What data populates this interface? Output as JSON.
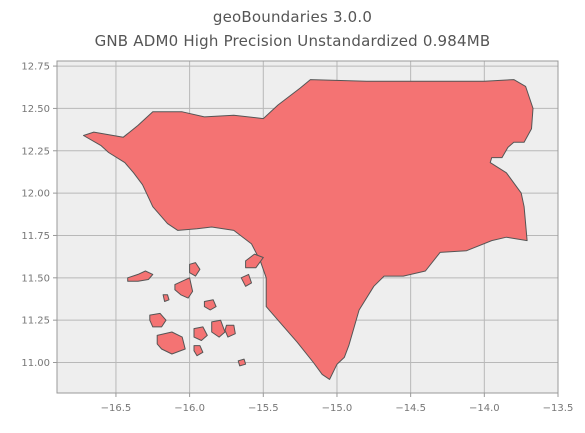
{
  "title": {
    "line1": "geoBoundaries 3.0.0",
    "line2": "GNB ADM0 High Precision Unstandardized 0.984MB"
  },
  "colors": {
    "fill": "#f47373",
    "edge": "#555555",
    "plot_bg": "#eeeeee",
    "grid": "#b8b8b8",
    "frame": "#999999"
  },
  "chart_data": {
    "type": "map",
    "xlim": [
      -16.9,
      -13.5
    ],
    "ylim": [
      10.82,
      12.78
    ],
    "x_ticks": [
      -16.5,
      -16.0,
      -15.5,
      -15.0,
      -14.5,
      -14.0,
      -13.5
    ],
    "x_tick_labels": [
      "−16.5",
      "−16.0",
      "−15.5",
      "−15.0",
      "−14.5",
      "−14.0",
      "−13.5"
    ],
    "y_ticks": [
      11.0,
      11.25,
      11.5,
      11.75,
      12.0,
      12.25,
      12.5,
      12.75
    ],
    "y_tick_labels": [
      "11.00",
      "11.25",
      "11.50",
      "11.75",
      "12.00",
      "12.25",
      "12.50",
      "12.75"
    ],
    "grid": true,
    "mainland": [
      [
        -16.72,
        12.34
      ],
      [
        -16.65,
        12.36
      ],
      [
        -16.45,
        12.33
      ],
      [
        -16.35,
        12.4
      ],
      [
        -16.25,
        12.48
      ],
      [
        -16.05,
        12.48
      ],
      [
        -15.9,
        12.45
      ],
      [
        -15.7,
        12.46
      ],
      [
        -15.5,
        12.44
      ],
      [
        -15.4,
        12.52
      ],
      [
        -15.25,
        12.62
      ],
      [
        -15.18,
        12.67
      ],
      [
        -14.8,
        12.66
      ],
      [
        -14.4,
        12.66
      ],
      [
        -14.0,
        12.66
      ],
      [
        -13.8,
        12.67
      ],
      [
        -13.72,
        12.63
      ],
      [
        -13.67,
        12.5
      ],
      [
        -13.68,
        12.38
      ],
      [
        -13.73,
        12.3
      ],
      [
        -13.8,
        12.3
      ],
      [
        -13.84,
        12.27
      ],
      [
        -13.88,
        12.21
      ],
      [
        -13.95,
        12.21
      ],
      [
        -13.96,
        12.18
      ],
      [
        -13.85,
        12.12
      ],
      [
        -13.75,
        12.0
      ],
      [
        -13.73,
        11.92
      ],
      [
        -13.71,
        11.72
      ],
      [
        -13.85,
        11.74
      ],
      [
        -13.95,
        11.72
      ],
      [
        -14.12,
        11.66
      ],
      [
        -14.3,
        11.65
      ],
      [
        -14.4,
        11.54
      ],
      [
        -14.55,
        11.51
      ],
      [
        -14.68,
        11.51
      ],
      [
        -14.75,
        11.45
      ],
      [
        -14.85,
        11.31
      ],
      [
        -14.92,
        11.1
      ],
      [
        -14.95,
        11.03
      ],
      [
        -15.0,
        10.99
      ],
      [
        -15.05,
        10.9
      ],
      [
        -15.1,
        10.93
      ],
      [
        -15.16,
        11.0
      ],
      [
        -15.27,
        11.12
      ],
      [
        -15.4,
        11.25
      ],
      [
        -15.48,
        11.33
      ],
      [
        -15.48,
        11.5
      ],
      [
        -15.52,
        11.6
      ],
      [
        -15.58,
        11.7
      ],
      [
        -15.7,
        11.78
      ],
      [
        -15.85,
        11.8
      ],
      [
        -15.95,
        11.79
      ],
      [
        -16.08,
        11.78
      ],
      [
        -16.15,
        11.82
      ],
      [
        -16.25,
        11.92
      ],
      [
        -16.32,
        12.05
      ],
      [
        -16.38,
        12.12
      ],
      [
        -16.44,
        12.18
      ],
      [
        -16.55,
        12.24
      ],
      [
        -16.6,
        12.28
      ]
    ],
    "islands": [
      [
        [
          -16.42,
          11.5
        ],
        [
          -16.35,
          11.52
        ],
        [
          -16.3,
          11.54
        ],
        [
          -16.25,
          11.52
        ],
        [
          -16.28,
          11.49
        ],
        [
          -16.35,
          11.48
        ],
        [
          -16.42,
          11.48
        ]
      ],
      [
        [
          -16.1,
          11.46
        ],
        [
          -16.05,
          11.48
        ],
        [
          -16.0,
          11.5
        ],
        [
          -15.98,
          11.42
        ],
        [
          -16.01,
          11.38
        ],
        [
          -16.06,
          11.4
        ],
        [
          -16.1,
          11.43
        ]
      ],
      [
        [
          -16.0,
          11.58
        ],
        [
          -15.96,
          11.59
        ],
        [
          -15.93,
          11.55
        ],
        [
          -15.96,
          11.51
        ],
        [
          -16.0,
          11.53
        ]
      ],
      [
        [
          -15.9,
          11.36
        ],
        [
          -15.84,
          11.37
        ],
        [
          -15.82,
          11.33
        ],
        [
          -15.86,
          11.31
        ],
        [
          -15.9,
          11.33
        ]
      ],
      [
        [
          -16.27,
          11.28
        ],
        [
          -16.2,
          11.29
        ],
        [
          -16.16,
          11.25
        ],
        [
          -16.19,
          11.21
        ],
        [
          -16.25,
          11.21
        ],
        [
          -16.27,
          11.25
        ]
      ],
      [
        [
          -16.22,
          11.16
        ],
        [
          -16.12,
          11.18
        ],
        [
          -16.05,
          11.15
        ],
        [
          -16.03,
          11.08
        ],
        [
          -16.12,
          11.05
        ],
        [
          -16.19,
          11.08
        ],
        [
          -16.22,
          11.11
        ]
      ],
      [
        [
          -15.97,
          11.2
        ],
        [
          -15.91,
          11.21
        ],
        [
          -15.88,
          11.16
        ],
        [
          -15.92,
          11.13
        ],
        [
          -15.97,
          11.15
        ]
      ],
      [
        [
          -15.97,
          11.1
        ],
        [
          -15.93,
          11.1
        ],
        [
          -15.91,
          11.06
        ],
        [
          -15.95,
          11.04
        ],
        [
          -15.97,
          11.07
        ]
      ],
      [
        [
          -15.85,
          11.24
        ],
        [
          -15.79,
          11.25
        ],
        [
          -15.76,
          11.18
        ],
        [
          -15.8,
          11.15
        ],
        [
          -15.85,
          11.18
        ]
      ],
      [
        [
          -15.75,
          11.22
        ],
        [
          -15.7,
          11.22
        ],
        [
          -15.69,
          11.17
        ],
        [
          -15.74,
          11.15
        ],
        [
          -15.76,
          11.19
        ]
      ],
      [
        [
          -15.62,
          11.6
        ],
        [
          -15.56,
          11.64
        ],
        [
          -15.5,
          11.62
        ],
        [
          -15.55,
          11.56
        ],
        [
          -15.62,
          11.56
        ]
      ],
      [
        [
          -15.65,
          11.5
        ],
        [
          -15.6,
          11.52
        ],
        [
          -15.58,
          11.47
        ],
        [
          -15.62,
          11.45
        ]
      ],
      [
        [
          -16.18,
          11.4
        ],
        [
          -16.15,
          11.4
        ],
        [
          -16.14,
          11.37
        ],
        [
          -16.17,
          11.36
        ]
      ],
      [
        [
          -15.67,
          11.01
        ],
        [
          -15.63,
          11.02
        ],
        [
          -15.62,
          10.99
        ],
        [
          -15.66,
          10.98
        ]
      ]
    ]
  }
}
